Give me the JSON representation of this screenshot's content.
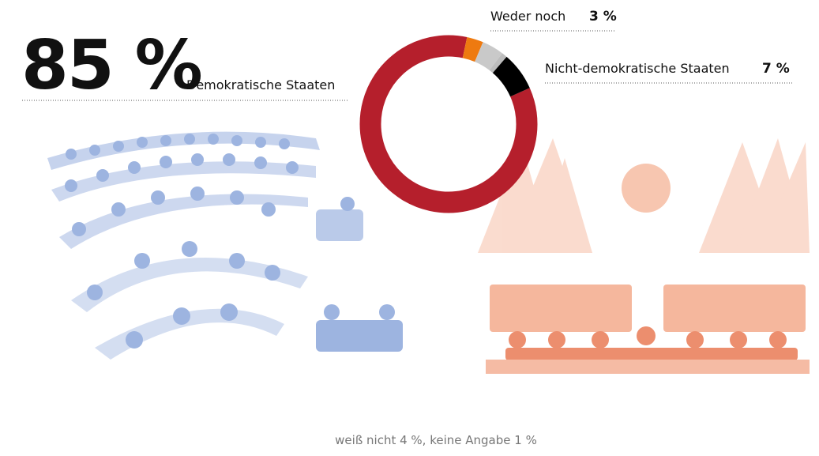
{
  "chart_data": {
    "type": "donut",
    "categories": [
      "Demokratische Staaten",
      "Weder noch",
      null,
      null,
      "Nicht-demokratische Staaten"
    ],
    "values": [
      85,
      3,
      4,
      1,
      7
    ],
    "value_labels": [
      "85 %",
      "3 %",
      null,
      null,
      "7 %"
    ],
    "colors": [
      "#b51f2c",
      "#ee7a10",
      "#c9c9c9",
      "#bcbcbc",
      "#000000"
    ],
    "note": "weiß nicht 4 %, keine Angabe 1 %"
  }
}
